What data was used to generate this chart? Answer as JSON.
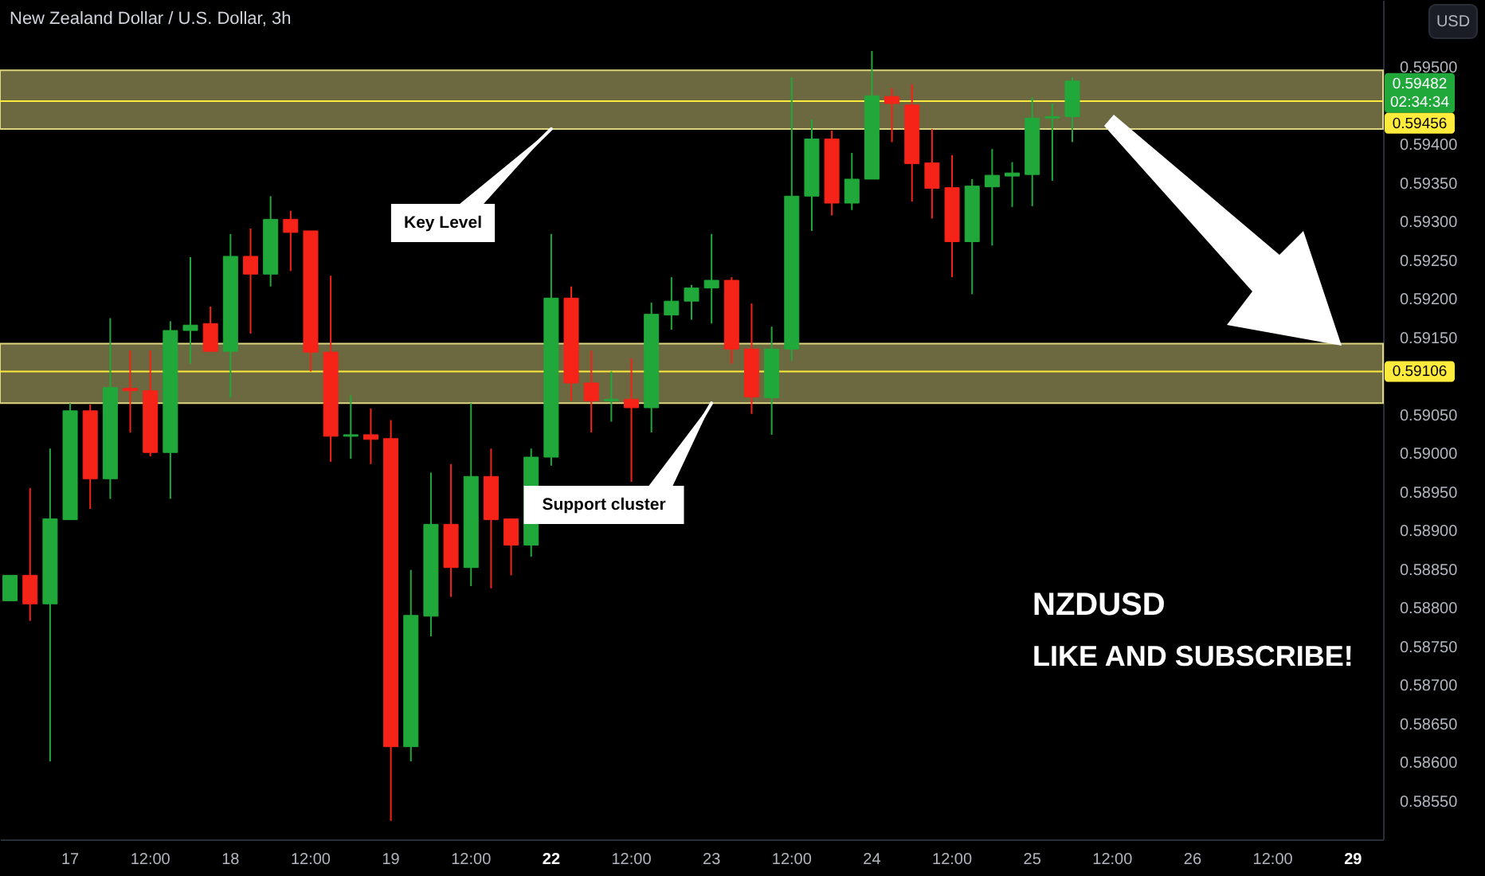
{
  "chart_data": {
    "type": "candlestick",
    "title": "New Zealand Dollar / U.S. Dollar, 3h",
    "ylabel": "USD",
    "categories": [
      null,
      null,
      null,
      "17",
      null,
      null,
      null,
      "12:00",
      null,
      null,
      null,
      "18",
      null,
      null,
      null,
      "12:00",
      null,
      null,
      null,
      "19",
      null,
      null,
      null,
      "12:00",
      null,
      null,
      null,
      "22",
      null,
      null,
      null,
      "12:00",
      null,
      null,
      null,
      "23",
      null,
      null,
      null,
      "12:00",
      null,
      null,
      null,
      "24",
      null,
      null,
      null,
      "12:00",
      null,
      null,
      null,
      "25",
      null,
      null,
      null,
      "12:00",
      null,
      null,
      null,
      "26",
      null,
      null,
      null,
      "12:00",
      null,
      null,
      null,
      "29",
      null
    ],
    "ohlc": [
      [
        0.58809,
        0.58842,
        0.58809,
        0.58842
      ],
      [
        0.58842,
        0.58955,
        0.58783,
        0.58805
      ],
      [
        0.58805,
        0.59006,
        0.58601,
        0.58915
      ],
      [
        0.58914,
        0.59065,
        0.58914,
        0.59055
      ],
      [
        0.59055,
        0.59063,
        0.58928,
        0.58967
      ],
      [
        0.58967,
        0.59175,
        0.58941,
        0.59085
      ],
      [
        0.59084,
        0.59133,
        0.59027,
        0.59081
      ],
      [
        0.59081,
        0.59133,
        0.58996,
        0.59001
      ],
      [
        0.59001,
        0.59171,
        0.58941,
        0.59159
      ],
      [
        0.59159,
        0.59254,
        0.59116,
        0.59166
      ],
      [
        0.59168,
        0.5919,
        0.59132,
        0.59132
      ],
      [
        0.59132,
        0.59284,
        0.59072,
        0.59255
      ],
      [
        0.59255,
        0.59291,
        0.59155,
        0.59232
      ],
      [
        0.59232,
        0.59333,
        0.59216,
        0.59303
      ],
      [
        0.59303,
        0.59314,
        0.59236,
        0.59286
      ],
      [
        0.59288,
        0.59288,
        0.59106,
        0.59131
      ],
      [
        0.59131,
        0.5923,
        0.58989,
        0.59022
      ],
      [
        0.59022,
        0.59075,
        0.58993,
        0.59024
      ],
      [
        0.59024,
        0.59058,
        0.58986,
        0.59018
      ],
      [
        0.59019,
        0.59043,
        0.58524,
        0.5862
      ],
      [
        0.5862,
        0.58849,
        0.58601,
        0.5879
      ],
      [
        0.58789,
        0.58975,
        0.58763,
        0.58908
      ],
      [
        0.58908,
        0.58986,
        0.58814,
        0.58852
      ],
      [
        0.58852,
        0.59065,
        0.58828,
        0.5897
      ],
      [
        0.5897,
        0.59006,
        0.58825,
        0.58914
      ],
      [
        0.58915,
        0.58915,
        0.58842,
        0.58881
      ],
      [
        0.58881,
        0.59006,
        0.58866,
        0.58995
      ],
      [
        0.58995,
        0.59284,
        0.58984,
        0.59201
      ],
      [
        0.59201,
        0.59216,
        0.59068,
        0.59091
      ],
      [
        0.59091,
        0.59133,
        0.59027,
        0.59068
      ],
      [
        0.59068,
        0.59106,
        0.59041,
        0.5907
      ],
      [
        0.5907,
        0.59123,
        0.58963,
        0.59059
      ],
      [
        0.59059,
        0.59195,
        0.59027,
        0.5918
      ],
      [
        0.59179,
        0.59228,
        0.5916,
        0.59197
      ],
      [
        0.59197,
        0.59218,
        0.59173,
        0.59214
      ],
      [
        0.59214,
        0.59284,
        0.59168,
        0.59224
      ],
      [
        0.59224,
        0.59228,
        0.59116,
        0.59135
      ],
      [
        0.59135,
        0.59194,
        0.59051,
        0.59073
      ],
      [
        0.59072,
        0.59164,
        0.59024,
        0.59135
      ],
      [
        0.59135,
        0.59487,
        0.5912,
        0.59333
      ],
      [
        0.59333,
        0.59432,
        0.59288,
        0.59407
      ],
      [
        0.59407,
        0.59418,
        0.59308,
        0.59324
      ],
      [
        0.59324,
        0.59389,
        0.59315,
        0.59355
      ],
      [
        0.59355,
        0.59521,
        0.59355,
        0.59463
      ],
      [
        0.59462,
        0.59473,
        0.59403,
        0.59453
      ],
      [
        0.59451,
        0.59478,
        0.59326,
        0.59375
      ],
      [
        0.59376,
        0.5942,
        0.59304,
        0.59343
      ],
      [
        0.59344,
        0.59386,
        0.59228,
        0.59274
      ],
      [
        0.59274,
        0.59355,
        0.59206,
        0.59346
      ],
      [
        0.59345,
        0.59394,
        0.59269,
        0.5936
      ],
      [
        0.59359,
        0.59377,
        0.59319,
        0.59363
      ],
      [
        0.59361,
        0.59461,
        0.5932,
        0.59434
      ],
      [
        0.59434,
        0.59453,
        0.59353,
        0.59436
      ],
      [
        0.59436,
        0.59487,
        0.59403,
        0.59482
      ],
      null,
      null,
      null,
      null,
      null,
      null,
      null,
      null,
      null,
      null,
      null,
      null,
      null,
      null,
      null
    ],
    "colors": [
      "#21a83b",
      "#f52318",
      "#21a83b",
      "#21a83b",
      "#f52318",
      "#21a83b",
      "#f52318",
      "#f52318",
      "#21a83b",
      "#21a83b",
      "#f52318",
      "#21a83b",
      "#f52318",
      "#21a83b",
      "#f52318",
      "#f52318",
      "#f52318",
      "#21a83b",
      "#f52318",
      "#f52318",
      "#21a83b",
      "#21a83b",
      "#f52318",
      "#21a83b",
      "#f52318",
      "#f52318",
      "#21a83b",
      "#21a83b",
      "#f52318",
      "#f52318",
      "#21a83b",
      "#f52318",
      "#21a83b",
      "#21a83b",
      "#21a83b",
      "#21a83b",
      "#f52318",
      "#f52318",
      "#21a83b",
      "#21a83b",
      "#21a83b",
      "#f52318",
      "#21a83b",
      "#21a83b",
      "#f52318",
      "#f52318",
      "#f52318",
      "#f52318",
      "#21a83b",
      "#21a83b",
      "#21a83b",
      "#21a83b",
      "#21a83b",
      "#21a83b",
      null,
      null,
      null,
      null,
      null,
      null,
      null,
      null,
      null,
      null,
      null,
      null,
      null,
      null,
      null
    ],
    "ylim": [
      0.585,
      0.59587
    ],
    "yticks": [
      {
        "value": 0.595,
        "label": "0.59500"
      },
      {
        "value": 0.594,
        "label": "0.59400"
      },
      {
        "value": 0.5935,
        "label": "0.59350"
      },
      {
        "value": 0.593,
        "label": "0.59300"
      },
      {
        "value": 0.5925,
        "label": "0.59250"
      },
      {
        "value": 0.592,
        "label": "0.59200"
      },
      {
        "value": 0.5915,
        "label": "0.59150"
      },
      {
        "value": 0.5905,
        "label": "0.59050"
      },
      {
        "value": 0.59,
        "label": "0.59000"
      },
      {
        "value": 0.5895,
        "label": "0.58950"
      },
      {
        "value": 0.589,
        "label": "0.58900"
      },
      {
        "value": 0.5885,
        "label": "0.58850"
      },
      {
        "value": 0.588,
        "label": "0.58800"
      },
      {
        "value": 0.5875,
        "label": "0.58750"
      },
      {
        "value": 0.587,
        "label": "0.58700"
      },
      {
        "value": 0.5865,
        "label": "0.58650"
      },
      {
        "value": 0.586,
        "label": "0.58600"
      },
      {
        "value": 0.5855,
        "label": "0.58550"
      }
    ],
    "grid": false,
    "bands": [
      {
        "axis": "y",
        "from": 0.5942,
        "to": 0.59496,
        "color": "#f0e68c"
      },
      {
        "axis": "y",
        "from": 0.59065,
        "to": 0.59142,
        "color": "#f0e68c"
      }
    ],
    "ref_lines": [
      {
        "axis": "y",
        "value": 0.59456,
        "label": "0.59456",
        "color": "#ffeb3b"
      },
      {
        "axis": "y",
        "value": 0.59106,
        "label": "0.59106",
        "color": "#ffeb3b"
      }
    ],
    "annotations": [
      {
        "text": "Key Level",
        "x": "22",
        "y": 0.5942
      },
      {
        "text": "Support cluster",
        "x": "23",
        "y": 0.59065
      },
      "NZDUSD",
      "LIKE AND SUBSCRIBE!",
      "0.59482",
      "02:34:34"
    ]
  }
}
